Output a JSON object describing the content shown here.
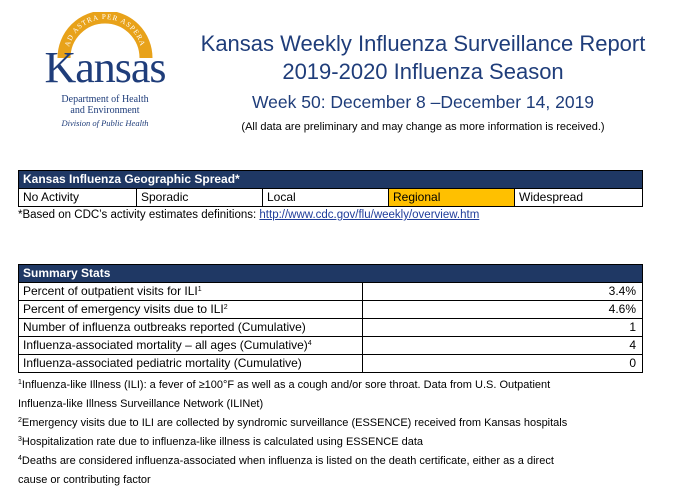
{
  "logo": {
    "arc_text": "AD ASTRA PER ASPERA",
    "word": "Kansas",
    "dept_line1": "Department of Health",
    "dept_line2": "and Environment",
    "division": "Division of Public Health",
    "colors": {
      "blue": "#1f3d7a",
      "gold": "#e8a21a"
    }
  },
  "header": {
    "title_line1": "Kansas Weekly Influenza Surveillance Report",
    "title_line2": "2019-2020 Influenza Season",
    "week": "Week 50: December 8 –December 14, 2019",
    "note": "(All data are preliminary and may change as more information is received.)"
  },
  "geo_spread": {
    "title": "Kansas Influenza Geographic Spread*",
    "levels": [
      "No Activity",
      "Sporadic",
      "Local",
      "Regional",
      "Widespread"
    ],
    "current_level": "Regional",
    "highlight_color": "#ffc000",
    "footnote_prefix": "*Based on CDC’s activity estimates definitions: ",
    "footnote_link": "http://www.cdc.gov/flu/weekly/overview.htm"
  },
  "summary_stats": {
    "title": "Summary Stats",
    "rows": [
      {
        "label": "Percent of outpatient visits for ILI",
        "sup": "1",
        "value": "3.4%"
      },
      {
        "label": "Percent of emergency visits due to ILI",
        "sup": "2",
        "value": "4.6%"
      },
      {
        "label": "Number of influenza outbreaks reported (Cumulative)",
        "sup": "",
        "value": "1"
      },
      {
        "label": "Influenza-associated mortality – all ages (Cumulative)",
        "sup": "4",
        "value": "4"
      },
      {
        "label": "Influenza-associated pediatric mortality (Cumulative)",
        "sup": "",
        "value": "0"
      }
    ]
  },
  "footnotes": [
    {
      "sup": "1",
      "text": "Influenza-like Illness (ILI): a fever of ≥100°F as well as a cough and/or sore throat. Data from U.S. Outpatient"
    },
    {
      "sup": "",
      "text": "Influenza-like Illness Surveillance Network (ILINet)"
    },
    {
      "sup": "2",
      "text": "Emergency visits due to ILI are collected by syndromic surveillance (ESSENCE) received from Kansas hospitals"
    },
    {
      "sup": "3",
      "text": "Hospitalization rate due to influenza-like illness is calculated using ESSENCE data"
    },
    {
      "sup": "4",
      "text": "Deaths are considered influenza-associated when influenza is listed on the death certificate, either as a direct"
    },
    {
      "sup": "",
      "text": "cause or contributing factor"
    }
  ]
}
